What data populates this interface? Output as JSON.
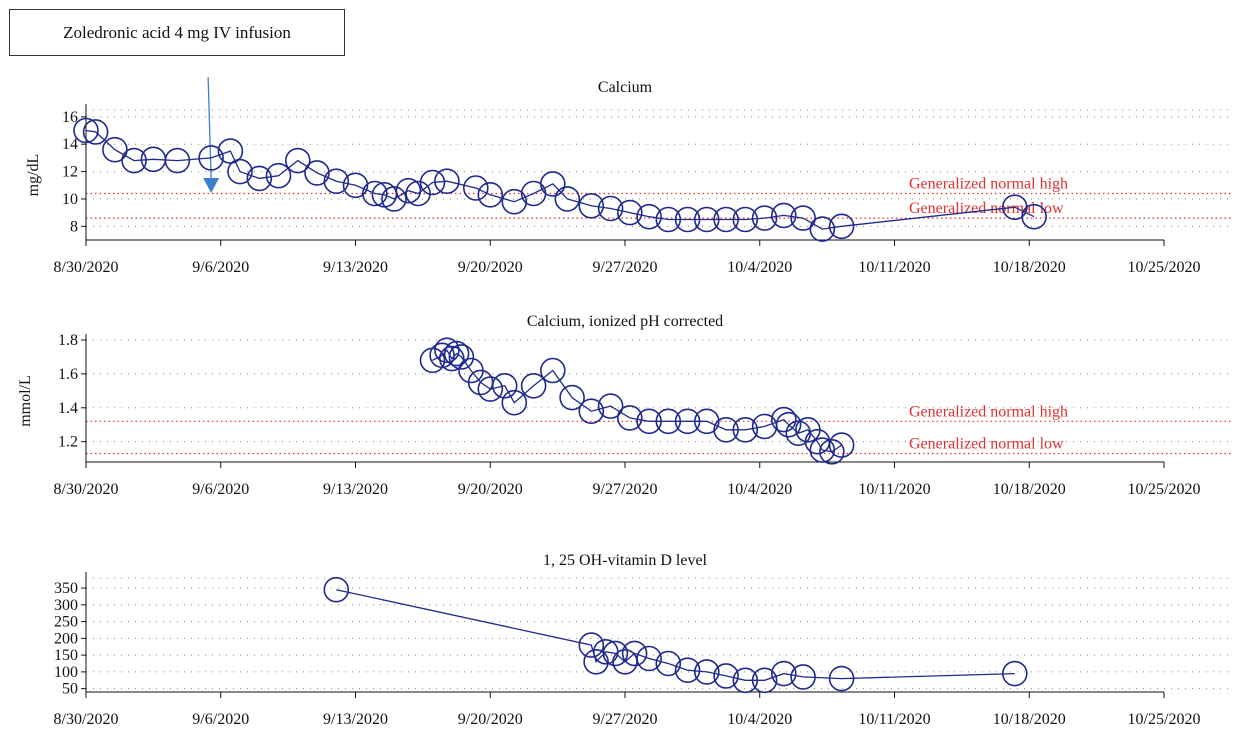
{
  "annotation": {
    "text": "Zoledronic acid 4 mg IV infusion",
    "date": "2020-09-05T12:00"
  },
  "x_axis_ticks": [
    "8/30/2020",
    "9/6/2020",
    "9/13/2020",
    "9/20/2020",
    "9/27/2020",
    "10/4/2020",
    "10/11/2020",
    "10/18/2020",
    "10/25/2020"
  ],
  "colors": {
    "series": "#1f2a8c",
    "reference": "#e03030",
    "grid": "#888888",
    "arrow": "#3b7fd0"
  },
  "chart_data": [
    {
      "type": "line",
      "title": "Calcium",
      "ylabel": "mg/dL",
      "xlim": [
        "2020-08-30",
        "2020-10-25"
      ],
      "ylim": [
        7,
        16.5
      ],
      "yticks": [
        "8",
        "10",
        "12",
        "14",
        "16"
      ],
      "grid": true,
      "reference_lines": [
        {
          "label": "Generalized normal high",
          "value": 10.4
        },
        {
          "label": "Generalized normal low",
          "value": 8.6
        }
      ],
      "series": [
        {
          "points": [
            [
              "2020-08-30T00:00",
              15.0
            ],
            [
              "2020-08-30T12:00",
              14.9
            ],
            [
              "2020-08-31T12:00",
              13.6
            ],
            [
              "2020-09-01T12:00",
              12.8
            ],
            [
              "2020-09-02T12:00",
              12.9
            ],
            [
              "2020-09-03T18:00",
              12.8
            ],
            [
              "2020-09-05T12:00",
              13.0
            ],
            [
              "2020-09-06T12:00",
              13.5
            ],
            [
              "2020-09-07T00:00",
              12.0
            ],
            [
              "2020-09-08T00:00",
              11.5
            ],
            [
              "2020-09-09T00:00",
              11.7
            ],
            [
              "2020-09-10T00:00",
              12.8
            ],
            [
              "2020-09-11T00:00",
              11.9
            ],
            [
              "2020-09-12T00:00",
              11.3
            ],
            [
              "2020-09-13T00:00",
              11.0
            ],
            [
              "2020-09-14T00:00",
              10.4
            ],
            [
              "2020-09-14T12:00",
              10.3
            ],
            [
              "2020-09-15T00:00",
              10.0
            ],
            [
              "2020-09-15T18:00",
              10.6
            ],
            [
              "2020-09-16T06:00",
              10.4
            ],
            [
              "2020-09-17T00:00",
              11.2
            ],
            [
              "2020-09-17T18:00",
              11.3
            ],
            [
              "2020-09-19T06:00",
              10.8
            ],
            [
              "2020-09-20T00:00",
              10.3
            ],
            [
              "2020-09-21T06:00",
              9.8
            ],
            [
              "2020-09-22T06:00",
              10.4
            ],
            [
              "2020-09-23T06:00",
              11.1
            ],
            [
              "2020-09-24T00:00",
              10.0
            ],
            [
              "2020-09-25T06:00",
              9.5
            ],
            [
              "2020-09-26T06:00",
              9.3
            ],
            [
              "2020-09-27T06:00",
              9.0
            ],
            [
              "2020-09-28T06:00",
              8.7
            ],
            [
              "2020-09-29T06:00",
              8.5
            ],
            [
              "2020-09-30T06:00",
              8.5
            ],
            [
              "2020-10-01T06:00",
              8.5
            ],
            [
              "2020-10-02T06:00",
              8.5
            ],
            [
              "2020-10-03T06:00",
              8.5
            ],
            [
              "2020-10-04T06:00",
              8.6
            ],
            [
              "2020-10-05T06:00",
              8.8
            ],
            [
              "2020-10-06T06:00",
              8.6
            ],
            [
              "2020-10-07T06:00",
              7.8
            ],
            [
              "2020-10-08T06:00",
              8.0
            ],
            [
              "2020-10-17T06:00",
              9.4
            ],
            [
              "2020-10-18T06:00",
              8.7
            ]
          ]
        }
      ]
    },
    {
      "type": "line",
      "title": "Calcium, ionized pH corrected",
      "ylabel": "mmol/L",
      "xlim": [
        "2020-08-30",
        "2020-10-25"
      ],
      "ylim": [
        1.08,
        1.8
      ],
      "yticks": [
        "1.2",
        "1.4",
        "1.6",
        "1.8"
      ],
      "grid": true,
      "reference_lines": [
        {
          "label": "Generalized normal high",
          "value": 1.32
        },
        {
          "label": "Generalized normal low",
          "value": 1.13
        }
      ],
      "series": [
        {
          "points": [
            [
              "2020-09-17T00:00",
              1.68
            ],
            [
              "2020-09-17T12:00",
              1.71
            ],
            [
              "2020-09-17T18:00",
              1.74
            ],
            [
              "2020-09-18T00:00",
              1.69
            ],
            [
              "2020-09-18T06:00",
              1.72
            ],
            [
              "2020-09-18T12:00",
              1.7
            ],
            [
              "2020-09-19T00:00",
              1.62
            ],
            [
              "2020-09-19T12:00",
              1.55
            ],
            [
              "2020-09-20T00:00",
              1.51
            ],
            [
              "2020-09-20T18:00",
              1.53
            ],
            [
              "2020-09-21T06:00",
              1.43
            ],
            [
              "2020-09-22T06:00",
              1.53
            ],
            [
              "2020-09-23T06:00",
              1.62
            ],
            [
              "2020-09-24T06:00",
              1.46
            ],
            [
              "2020-09-25T06:00",
              1.38
            ],
            [
              "2020-09-26T06:00",
              1.41
            ],
            [
              "2020-09-27T06:00",
              1.34
            ],
            [
              "2020-09-28T06:00",
              1.32
            ],
            [
              "2020-09-29T06:00",
              1.32
            ],
            [
              "2020-09-30T06:00",
              1.32
            ],
            [
              "2020-10-01T06:00",
              1.32
            ],
            [
              "2020-10-02T06:00",
              1.27
            ],
            [
              "2020-10-03T06:00",
              1.27
            ],
            [
              "2020-10-04T06:00",
              1.29
            ],
            [
              "2020-10-05T06:00",
              1.33
            ],
            [
              "2020-10-05T12:00",
              1.3
            ],
            [
              "2020-10-06T00:00",
              1.25
            ],
            [
              "2020-10-06T12:00",
              1.27
            ],
            [
              "2020-10-07T00:00",
              1.2
            ],
            [
              "2020-10-07T06:00",
              1.15
            ],
            [
              "2020-10-07T18:00",
              1.14
            ],
            [
              "2020-10-08T06:00",
              1.18
            ]
          ]
        }
      ]
    },
    {
      "type": "line",
      "title": "1, 25 OH-vitamin D level",
      "ylabel": "",
      "xlim": [
        "2020-08-30",
        "2020-10-25"
      ],
      "ylim": [
        40,
        380
      ],
      "yticks": [
        "50",
        "100",
        "150",
        "200",
        "250",
        "300",
        "350"
      ],
      "grid": true,
      "reference_lines": [],
      "series": [
        {
          "points": [
            [
              "2020-09-12T00:00",
              345
            ],
            [
              "2020-09-25T06:00",
              180
            ],
            [
              "2020-09-25T12:00",
              130
            ],
            [
              "2020-09-26T00:00",
              160
            ],
            [
              "2020-09-26T12:00",
              155
            ],
            [
              "2020-09-27T00:00",
              130
            ],
            [
              "2020-09-27T12:00",
              155
            ],
            [
              "2020-09-28T06:00",
              140
            ],
            [
              "2020-09-29T06:00",
              125
            ],
            [
              "2020-09-30T06:00",
              105
            ],
            [
              "2020-10-01T06:00",
              100
            ],
            [
              "2020-10-02T06:00",
              88
            ],
            [
              "2020-10-03T06:00",
              75
            ],
            [
              "2020-10-04T06:00",
              75
            ],
            [
              "2020-10-05T06:00",
              95
            ],
            [
              "2020-10-06T06:00",
              85
            ],
            [
              "2020-10-08T06:00",
              80
            ],
            [
              "2020-10-17T06:00",
              95
            ]
          ]
        }
      ]
    }
  ]
}
